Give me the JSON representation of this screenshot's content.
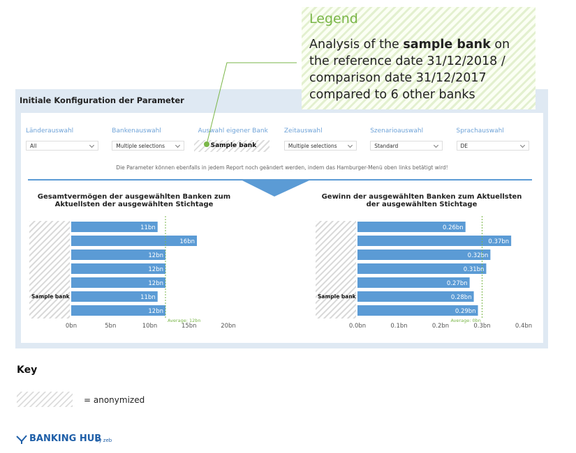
{
  "legend": {
    "title": "Legend",
    "text": [
      "Analysis of the ",
      "sample bank",
      " on the reference date 31/12/2018 / comparison date 31/12/2017 compared to 6 other banks"
    ]
  },
  "panel": {
    "title": "Initiale Konfiguration der Parameter",
    "filters": [
      {
        "label": "Länderauswahl",
        "value": "All"
      },
      {
        "label": "Bankenauswahl",
        "value": "Multiple selections"
      },
      {
        "label": "Auswahl eigener Bank",
        "value": "Sample bank"
      },
      {
        "label": "Zeitauswahl",
        "value": "Multiple selections"
      },
      {
        "label": "Szenarioauswahl",
        "value": "Standard"
      },
      {
        "label": "Sprachauswahl",
        "value": "DE"
      }
    ],
    "note": "Die Parameter können ebenfalls in jedem Report noch geändert werden, indem das Hamburger-Menü oben links betätigt wird!"
  },
  "chart_data": [
    {
      "type": "bar",
      "title": "Gesamtvermögen der ausgewählten Banken zum Aktuellsten der ausgewählten Stichtage",
      "categories": [
        null,
        null,
        null,
        null,
        null,
        "Sample bank",
        null
      ],
      "values": [
        11,
        16,
        12,
        12,
        12,
        11,
        12
      ],
      "value_labels": [
        "11bn",
        "16bn",
        "12bn",
        "12bn",
        "12bn",
        "11bn",
        "12bn"
      ],
      "color": "#5b9bd5",
      "xlim": [
        0,
        20
      ],
      "xticks": [
        {
          "value": 0,
          "label": "0bn"
        },
        {
          "value": 5,
          "label": "5bn"
        },
        {
          "value": 10,
          "label": "10bn"
        },
        {
          "value": 15,
          "label": "15bn"
        },
        {
          "value": 20,
          "label": "20bn"
        }
      ],
      "average": {
        "value": 12,
        "label": "Average: 12bn"
      }
    },
    {
      "type": "bar",
      "title": "Gewinn der ausgewählten Banken zum Aktuellsten der ausgewählten Stichtage",
      "categories": [
        null,
        null,
        null,
        null,
        null,
        "Sample bank",
        null
      ],
      "values": [
        0.26,
        0.37,
        0.32,
        0.31,
        0.27,
        0.28,
        0.29
      ],
      "value_labels": [
        "0.26bn",
        "0.37bn",
        "0.32bn",
        "0.31bn",
        "0.27bn",
        "0.28bn",
        "0.29bn"
      ],
      "color": "#5b9bd5",
      "xlim": [
        0,
        0.4
      ],
      "xticks": [
        {
          "value": 0,
          "label": "0.0bn"
        },
        {
          "value": 0.1,
          "label": "0.1bn"
        },
        {
          "value": 0.2,
          "label": "0.2bn"
        },
        {
          "value": 0.3,
          "label": "0.3bn"
        },
        {
          "value": 0.4,
          "label": "0.4bn"
        }
      ],
      "average": {
        "value": 0.3,
        "label": "Average: 0bn"
      }
    }
  ],
  "key": {
    "title": "Key",
    "text": "= anonymized"
  },
  "brand": {
    "name": "BANKING HUB",
    "by": "by zeb"
  }
}
